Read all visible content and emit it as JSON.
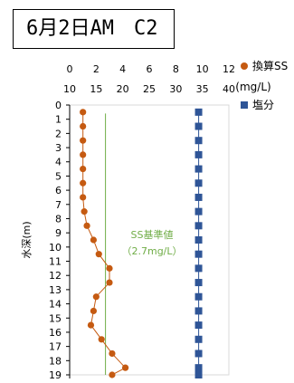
{
  "title": "6月2日AM　C2",
  "chart_data": {
    "type": "scatter",
    "ylabel": "水深(m)",
    "y_axis": {
      "min": 0,
      "max": 19,
      "step": 1,
      "inverted": true
    },
    "x_axis_top": {
      "min": 0,
      "max": 12,
      "step": 2,
      "unit_label": "(mg/L)"
    },
    "x_axis_top2": {
      "min": 10,
      "max": 40,
      "step": 5
    },
    "series": [
      {
        "name": "換算SS",
        "axis": "top",
        "marker": "circle",
        "color": "#c55a11",
        "points": [
          {
            "x": 1.0,
            "y": 0.5
          },
          {
            "x": 1.0,
            "y": 1.5
          },
          {
            "x": 1.0,
            "y": 2.5
          },
          {
            "x": 1.0,
            "y": 3.5
          },
          {
            "x": 1.0,
            "y": 4.5
          },
          {
            "x": 1.0,
            "y": 5.5
          },
          {
            "x": 1.0,
            "y": 6.5
          },
          {
            "x": 1.1,
            "y": 7.5
          },
          {
            "x": 1.3,
            "y": 8.5
          },
          {
            "x": 1.8,
            "y": 9.5
          },
          {
            "x": 2.2,
            "y": 10.5
          },
          {
            "x": 3.0,
            "y": 11.5
          },
          {
            "x": 3.0,
            "y": 12.5
          },
          {
            "x": 2.0,
            "y": 13.5
          },
          {
            "x": 1.8,
            "y": 14.5
          },
          {
            "x": 1.6,
            "y": 15.5
          },
          {
            "x": 2.4,
            "y": 16.5
          },
          {
            "x": 3.2,
            "y": 17.5
          },
          {
            "x": 4.2,
            "y": 18.5
          },
          {
            "x": 3.2,
            "y": 19.0
          }
        ]
      },
      {
        "name": "塩分",
        "axis": "top2",
        "marker": "square",
        "color": "#2f5597",
        "points": [
          {
            "x": 34.3,
            "y": 0.5
          },
          {
            "x": 34.3,
            "y": 1.5
          },
          {
            "x": 34.3,
            "y": 2.5
          },
          {
            "x": 34.3,
            "y": 3.5
          },
          {
            "x": 34.3,
            "y": 4.5
          },
          {
            "x": 34.3,
            "y": 5.5
          },
          {
            "x": 34.3,
            "y": 6.5
          },
          {
            "x": 34.3,
            "y": 7.5
          },
          {
            "x": 34.3,
            "y": 8.5
          },
          {
            "x": 34.3,
            "y": 9.5
          },
          {
            "x": 34.3,
            "y": 10.5
          },
          {
            "x": 34.3,
            "y": 11.5
          },
          {
            "x": 34.3,
            "y": 12.5
          },
          {
            "x": 34.3,
            "y": 13.5
          },
          {
            "x": 34.3,
            "y": 14.5
          },
          {
            "x": 34.3,
            "y": 15.5
          },
          {
            "x": 34.3,
            "y": 16.5
          },
          {
            "x": 34.3,
            "y": 17.5
          },
          {
            "x": 34.3,
            "y": 18.5
          },
          {
            "x": 34.3,
            "y": 19.0
          }
        ]
      }
    ],
    "reference_line": {
      "name": "SS基準値",
      "label_line1": "SS基準値",
      "label_line2": "（2.7mg/L）",
      "axis": "top",
      "x": 2.7,
      "color": "#70ad47"
    },
    "legend": {
      "placement": "right",
      "items": [
        {
          "label": "換算SS",
          "marker": "circle",
          "color": "#c55a11"
        },
        {
          "label": "塩分",
          "marker": "square",
          "color": "#2f5597"
        }
      ]
    },
    "grid": false
  }
}
